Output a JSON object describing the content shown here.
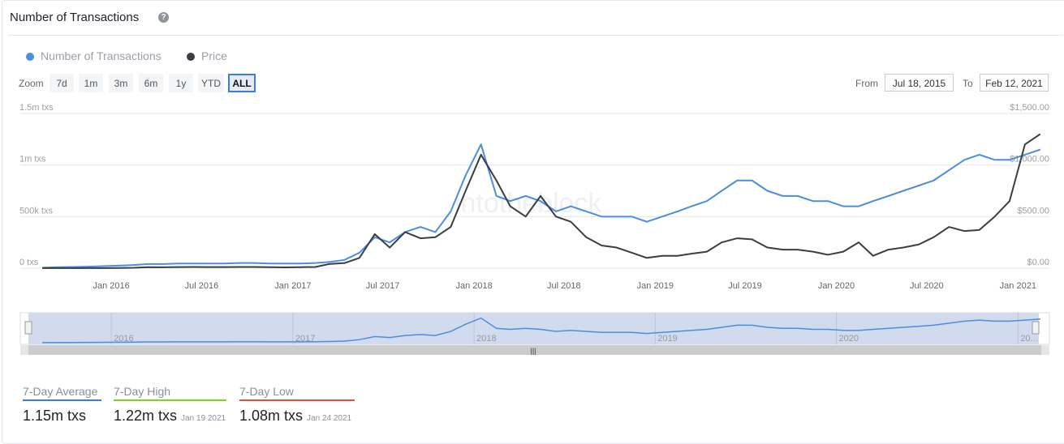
{
  "header": {
    "title": "Number of Transactions",
    "help_icon": "question-circle-icon"
  },
  "legend": [
    {
      "label": "Number of Transactions",
      "color": "#4a8ee0"
    },
    {
      "label": "Price",
      "color": "#3a3d42"
    }
  ],
  "zoom": {
    "label": "Zoom",
    "buttons": [
      "7d",
      "1m",
      "3m",
      "6m",
      "1y",
      "YTD",
      "ALL"
    ],
    "active": "ALL"
  },
  "range": {
    "from_label": "From",
    "from": "Jul 18, 2015",
    "to_label": "To",
    "to": "Feb 12, 2021"
  },
  "watermark": "intotheblock",
  "chart_data": {
    "type": "line",
    "x_ticks": [
      "Jan 2016",
      "Jul 2016",
      "Jan 2017",
      "Jul 2017",
      "Jan 2018",
      "Jul 2018",
      "Jan 2019",
      "Jul 2019",
      "Jan 2020",
      "Jul 2020",
      "Jan 2021"
    ],
    "y_left_ticks": [
      "0 txs",
      "500k txs",
      "1m txs",
      "1.5m txs"
    ],
    "y_left_range": [
      0,
      1500000
    ],
    "y_right_ticks": [
      "$0.00",
      "$500.00",
      "$1,000.00",
      "$1,500.00"
    ],
    "y_right_range": [
      0,
      1500
    ],
    "grid": true,
    "x": [
      "2015-08",
      "2015-09",
      "2015-10",
      "2015-11",
      "2015-12",
      "2016-01",
      "2016-02",
      "2016-03",
      "2016-04",
      "2016-05",
      "2016-06",
      "2016-07",
      "2016-08",
      "2016-09",
      "2016-10",
      "2016-11",
      "2016-12",
      "2017-01",
      "2017-02",
      "2017-03",
      "2017-04",
      "2017-05",
      "2017-06",
      "2017-07",
      "2017-08",
      "2017-09",
      "2017-10",
      "2017-11",
      "2017-12",
      "2018-01",
      "2018-02",
      "2018-03",
      "2018-04",
      "2018-05",
      "2018-06",
      "2018-07",
      "2018-08",
      "2018-09",
      "2018-10",
      "2018-11",
      "2018-12",
      "2019-01",
      "2019-02",
      "2019-03",
      "2019-04",
      "2019-05",
      "2019-06",
      "2019-07",
      "2019-08",
      "2019-09",
      "2019-10",
      "2019-11",
      "2019-12",
      "2020-01",
      "2020-02",
      "2020-03",
      "2020-04",
      "2020-05",
      "2020-06",
      "2020-07",
      "2020-08",
      "2020-09",
      "2020-10",
      "2020-11",
      "2020-12",
      "2021-01",
      "2021-02"
    ],
    "series": [
      {
        "name": "Number of Transactions",
        "axis": "left",
        "color": "#4a8ee0",
        "values": [
          5000,
          10000,
          12000,
          15000,
          20000,
          25000,
          30000,
          40000,
          40000,
          45000,
          45000,
          45000,
          45000,
          50000,
          50000,
          45000,
          45000,
          45000,
          50000,
          60000,
          80000,
          150000,
          300000,
          250000,
          350000,
          400000,
          350000,
          550000,
          900000,
          1200000,
          700000,
          650000,
          700000,
          650000,
          550000,
          600000,
          550000,
          500000,
          500000,
          500000,
          450000,
          500000,
          550000,
          600000,
          650000,
          750000,
          850000,
          850000,
          750000,
          700000,
          700000,
          650000,
          650000,
          600000,
          600000,
          650000,
          700000,
          750000,
          800000,
          850000,
          950000,
          1050000,
          1100000,
          1050000,
          1050000,
          1100000,
          1150000
        ]
      },
      {
        "name": "Price",
        "axis": "right",
        "color": "#3a3d42",
        "values": [
          1,
          1,
          1,
          1,
          1,
          2,
          4,
          10,
          9,
          11,
          12,
          11,
          11,
          12,
          12,
          10,
          8,
          10,
          12,
          40,
          50,
          100,
          330,
          200,
          350,
          290,
          300,
          400,
          750,
          1100,
          850,
          600,
          500,
          700,
          500,
          450,
          300,
          220,
          200,
          150,
          100,
          120,
          120,
          140,
          160,
          250,
          290,
          280,
          200,
          180,
          180,
          160,
          130,
          160,
          250,
          120,
          180,
          200,
          230,
          300,
          400,
          360,
          370,
          500,
          650,
          1200,
          1300
        ]
      }
    ]
  },
  "navigator": {
    "years": [
      "2016",
      "2017",
      "2018",
      "2019",
      "2020",
      "20..."
    ]
  },
  "stats": [
    {
      "label": "7-Day Average",
      "value": "1.15m txs",
      "date": "",
      "color": "#3b7be6"
    },
    {
      "label": "7-Day High",
      "value": "1.22m txs",
      "date": "Jan 19 2021",
      "color": "#7ed321"
    },
    {
      "label": "7-Day Low",
      "value": "1.08m txs",
      "date": "Jan 24 2021",
      "color": "#e0523a"
    }
  ]
}
